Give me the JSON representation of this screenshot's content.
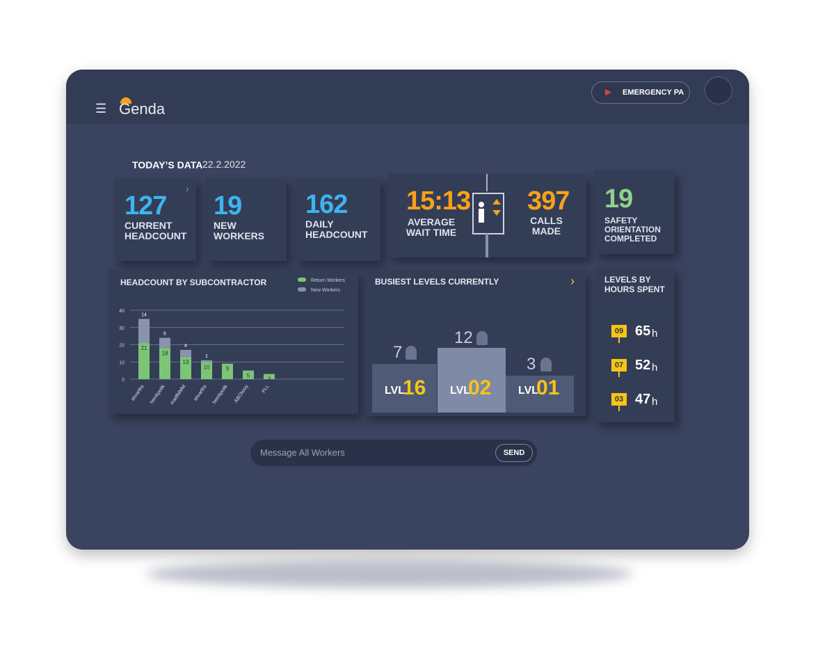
{
  "header": {
    "logo": "Genda",
    "emergency_button": "EMERGENCY PA"
  },
  "today": {
    "label": "TODAY’S DATA",
    "date": "22.2.2022"
  },
  "stats": [
    {
      "value": "127",
      "label": "CURRENT HEADCOUNT"
    },
    {
      "value": "19",
      "label": "NEW WORKERS"
    },
    {
      "value": "162",
      "label": "DAILY HEADCOUNT"
    },
    {
      "value": "15:13",
      "label": "AVERAGE WAIT TIME"
    },
    {
      "value": "397",
      "label": "CALLS MADE"
    },
    {
      "value": "19",
      "label": "SAFETY ORIENTATION COMPLETED"
    }
  ],
  "chart_data": {
    "type": "bar",
    "stacked": true,
    "title": "HEADCOUNT BY SUBCONTRACTOR",
    "categories": [
      "shvarths",
      "hemkpolik",
      "madfMMM",
      "shvarths",
      "hemkpolik",
      "ABChooy",
      "PLL"
    ],
    "series": [
      {
        "name": "Return Workers",
        "color": "#7cc576",
        "values": [
          21,
          18,
          13,
          10,
          9,
          5,
          3
        ]
      },
      {
        "name": "New Workers",
        "color": "#8a93ad",
        "values": [
          14,
          6,
          4,
          1,
          0,
          0,
          0
        ]
      }
    ],
    "ylim": [
      0,
      40
    ],
    "yticks": [
      0,
      10,
      20,
      30,
      40
    ],
    "grid": true
  },
  "busiest_levels": {
    "title": "BUSIEST LEVELS CURRENTLY",
    "prefix": "LVL",
    "items": [
      {
        "count": 7,
        "level": "16"
      },
      {
        "count": 12,
        "level": "02"
      },
      {
        "count": 3,
        "level": "01"
      }
    ]
  },
  "levels_by_hours": {
    "title": "LEVELS BY HOURS SPENT",
    "unit": "h",
    "items": [
      {
        "level": "09",
        "hours": 65
      },
      {
        "level": "07",
        "hours": 52
      },
      {
        "level": "03",
        "hours": 47
      }
    ]
  },
  "message": {
    "placeholder": "Message All Workers",
    "button": "SEND"
  }
}
